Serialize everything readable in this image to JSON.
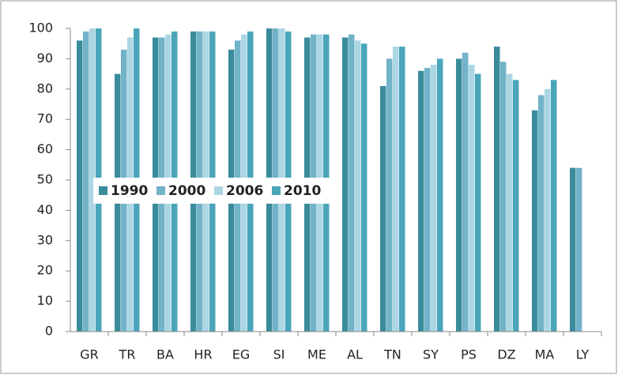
{
  "chart_data": {
    "type": "bar",
    "categories": [
      "GR",
      "TR",
      "BA",
      "HR",
      "EG",
      "SI",
      "ME",
      "AL",
      "TN",
      "SY",
      "PS",
      "DZ",
      "MA",
      "LY"
    ],
    "series": [
      {
        "name": "1990",
        "color": "#3a8c9c",
        "values": [
          96,
          85,
          97,
          99,
          93,
          100,
          97,
          97,
          81,
          86,
          90,
          94,
          73,
          54
        ]
      },
      {
        "name": "2000",
        "color": "#72b3c9",
        "values": [
          99,
          93,
          97,
          99,
          96,
          100,
          98,
          98,
          90,
          87,
          92,
          89,
          78,
          54
        ]
      },
      {
        "name": "2006",
        "color": "#acd6e3",
        "values": [
          100,
          97,
          98,
          99,
          98,
          100,
          98,
          96,
          94,
          88,
          88,
          85,
          80,
          null
        ]
      },
      {
        "name": "2010",
        "color": "#4ba5ba",
        "values": [
          100,
          100,
          99,
          99,
          99,
          99,
          98,
          95,
          94,
          90,
          85,
          83,
          83,
          null
        ]
      }
    ],
    "ylim": [
      0,
      100
    ],
    "yticks": [
      0,
      10,
      20,
      30,
      40,
      50,
      60,
      70,
      80,
      90,
      100
    ]
  }
}
